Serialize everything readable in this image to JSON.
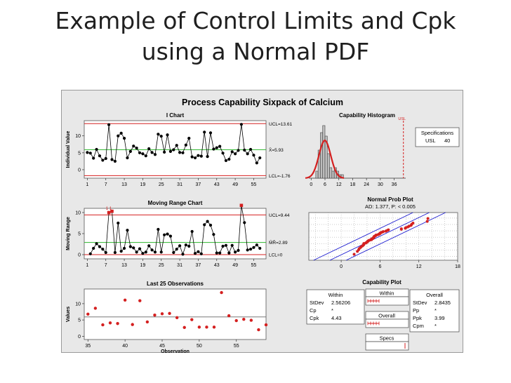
{
  "slide": {
    "title_line1": "Example of Control Limits and Cpk",
    "title_line2": "using a Normal PDF"
  },
  "colors": {
    "bg": "#e8e8e8",
    "red": "#d42020",
    "green": "#2db52d",
    "blue": "#1a1ad0",
    "black": "#000000"
  },
  "chart_data": {
    "type": "capability-sixpack",
    "title": "Process Capability Sixpack of Calcium",
    "i_chart": {
      "type": "line",
      "title": "I Chart",
      "ylabel": "Individual Value",
      "x_ticks": [
        1,
        7,
        13,
        19,
        25,
        31,
        37,
        43,
        49,
        55
      ],
      "y_ticks": [
        0,
        5,
        10
      ],
      "ylim": [
        -2.5,
        14.5
      ],
      "xlim": [
        0,
        59
      ],
      "ucl": 13.61,
      "center": 5.93,
      "lcl": -1.76,
      "ucl_label": "UCL=13.61",
      "center_label": "X̄=5.93",
      "lcl_label": "LCL=-1.76",
      "values": [
        5.1,
        4.9,
        3.4,
        6.0,
        4.1,
        2.8,
        3.3,
        13.3,
        3.0,
        2.5,
        10.0,
        10.8,
        9.3,
        3.5,
        5.4,
        7.0,
        6.4,
        5.0,
        4.7,
        4.1,
        6.2,
        5.1,
        4.5,
        10.5,
        9.9,
        5.2,
        10.3,
        5.4,
        5.9,
        7.2,
        5.1,
        5.0,
        7.3,
        9.3,
        3.8,
        3.5,
        4.2,
        4.0,
        11.1,
        3.9,
        10.9,
        6.1,
        6.5,
        6.9,
        4.9,
        2.7,
        3.1,
        5.3,
        4.7,
        5.7,
        13.4,
        5.8,
        4.7,
        6.0,
        4.3,
        2.0,
        3.5
      ]
    },
    "mr_chart": {
      "type": "line",
      "title": "Moving Range Chart",
      "ylabel": "Moving Range",
      "x_ticks": [
        1,
        7,
        13,
        19,
        25,
        31,
        37,
        43,
        49,
        55
      ],
      "y_ticks": [
        0,
        5,
        10
      ],
      "ylim": [
        -1,
        11
      ],
      "xlim": [
        0,
        59
      ],
      "ucl": 9.44,
      "center": 2.89,
      "lcl": 0,
      "ucl_label": "UCL=9.44",
      "center_label": "M̄R̄=2.89",
      "lcl_label": "LCL=0",
      "flag_label": "1 1",
      "values": [
        0.2,
        1.5,
        2.6,
        1.9,
        1.3,
        0.5,
        10.0,
        10.3,
        0.5,
        7.5,
        0.8,
        1.5,
        5.8,
        1.9,
        1.6,
        0.6,
        1.4,
        0.3,
        0.6,
        2.1,
        1.1,
        0.6,
        6.0,
        0.6,
        4.7,
        4.9,
        4.4,
        0.5,
        1.3,
        2.1,
        0.1,
        2.3,
        2.0,
        5.5,
        0.3,
        0.7,
        0.2,
        7.1,
        7.9,
        7.0,
        4.8,
        0.4,
        0.4,
        2.0,
        2.2,
        0.4,
        2.2,
        0.6,
        1.0,
        11.7,
        7.6,
        1.1,
        1.3,
        1.7,
        2.3,
        1.5
      ]
    },
    "last25": {
      "type": "scatter",
      "title": "Last 25 Observations",
      "ylabel": "Values",
      "xlabel": "Observation",
      "x_ticks": [
        35,
        40,
        45,
        50,
        55
      ],
      "y_ticks": [
        0,
        5,
        10
      ],
      "xlim": [
        34.5,
        59
      ],
      "ylim": [
        -1,
        14.5
      ],
      "reference": 5.93,
      "x": [
        35,
        36,
        37,
        38,
        39,
        40,
        41,
        42,
        43,
        44,
        45,
        46,
        47,
        48,
        49,
        50,
        51,
        52,
        53,
        54,
        55,
        56,
        57,
        58,
        59
      ],
      "values": [
        6.8,
        8.6,
        3.5,
        4.1,
        3.9,
        11.1,
        3.6,
        10.9,
        4.4,
        6.5,
        6.9,
        7.0,
        5.7,
        2.7,
        5.1,
        2.8,
        2.8,
        2.8,
        13.4,
        6.3,
        4.8,
        5.2,
        4.9,
        2.0,
        3.5
      ]
    },
    "histogram": {
      "type": "bar",
      "title": "Capability Histogram",
      "x_ticks": [
        0,
        6,
        12,
        18,
        24,
        30,
        36
      ],
      "xlim": [
        -1,
        41
      ],
      "ylim": [
        0,
        16
      ],
      "bin_edges": [
        2,
        3,
        4,
        5,
        6,
        7,
        8,
        9,
        10,
        11,
        12,
        13,
        14
      ],
      "counts": [
        2,
        8,
        13,
        15,
        12,
        7,
        3,
        2,
        3,
        2,
        1,
        1
      ],
      "normal": {
        "mean": 5.93,
        "sd": 2.56
      },
      "usl": 40,
      "usl_label": "USL",
      "spec_title": "Specifications",
      "spec_label": "USL",
      "spec_value": "40"
    },
    "prob_plot": {
      "type": "scatter",
      "title": "Normal Prob Plot",
      "subtitle": "AD: 1.377, P: < 0.005",
      "x_ticks": [
        0,
        6,
        12,
        18
      ],
      "xlim": [
        -5,
        18
      ],
      "zlim": [
        -3,
        3
      ],
      "mean": 5.93,
      "sd": 2.56,
      "ci_halfwidth": 0.9
    },
    "capability_plot": {
      "title": "Capability Plot",
      "within_header": "Within",
      "overall_header": "Overall",
      "within_stats": [
        {
          "label": "StDev",
          "value": "2.56206"
        },
        {
          "label": "Cp",
          "value": "*"
        },
        {
          "label": "Cpk",
          "value": "4.43"
        }
      ],
      "overall_stats": [
        {
          "label": "StDev",
          "value": "2.8435"
        },
        {
          "label": "Pp",
          "value": "*"
        },
        {
          "label": "Ppk",
          "value": "3.99"
        },
        {
          "label": "Cpm",
          "value": "*"
        }
      ],
      "bar_within": "Within",
      "bar_overall": "Overall",
      "bar_specs": "Specs"
    }
  }
}
